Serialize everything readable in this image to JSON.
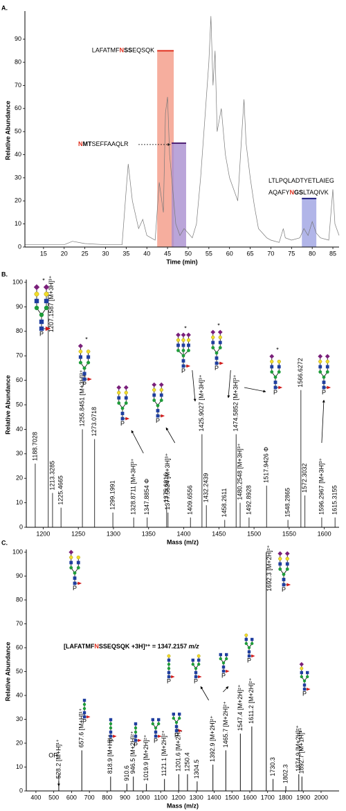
{
  "chart_data": [
    {
      "panel": "A.",
      "type": "line",
      "xlabel": "Time (min)",
      "ylabel": "Relative Abundance",
      "xlim": [
        10.5,
        86.5
      ],
      "ylim": [
        0,
        101
      ],
      "xticks": [
        15,
        20,
        25,
        30,
        35,
        40,
        45,
        50,
        55,
        60,
        65,
        70,
        75,
        80,
        85
      ],
      "yticks": [
        0,
        10,
        20,
        30,
        40,
        50,
        60,
        70,
        80,
        90
      ],
      "color": "#777777",
      "x": [
        10.5,
        20,
        22,
        25,
        30,
        34,
        35,
        35.5,
        36.5,
        38,
        39,
        40,
        41,
        42,
        43,
        44,
        44.5,
        45,
        45.5,
        46,
        46.5,
        47,
        48,
        49,
        50,
        51,
        52,
        53,
        54,
        55,
        55.5,
        56,
        56.5,
        57,
        58,
        59,
        60,
        61,
        62,
        63,
        63.5,
        64,
        65,
        66,
        67,
        68,
        69,
        70,
        72,
        73,
        73.5,
        75,
        77,
        78,
        79,
        80,
        81,
        82,
        84,
        85,
        85.5,
        86.5
      ],
      "values": [
        1,
        1,
        2.5,
        1.5,
        1,
        1,
        25,
        36,
        20,
        8,
        12,
        5,
        4,
        3,
        28,
        15,
        58,
        65,
        40,
        30,
        20,
        10,
        5,
        8,
        6,
        4,
        10,
        30,
        55,
        80,
        100,
        70,
        85,
        50,
        60,
        40,
        30,
        25,
        20,
        50,
        64,
        45,
        30,
        18,
        8,
        6,
        4,
        3,
        2,
        8,
        4,
        3,
        4,
        8,
        5,
        11,
        6,
        4,
        3,
        25,
        10,
        5
      ],
      "regions": [
        {
          "x0": 42.5,
          "x1": 46.5,
          "y": 85,
          "fill": "#f49a86",
          "color": "#e0301e",
          "lines": [
            [
              {
                "text": "LAFATMF"
              },
              {
                "text": "N",
                "color": "#e0301e",
                "bold": true
              },
              {
                "text": "SS",
                "bold": true
              },
              {
                "text": "EQSQK"
              }
            ]
          ]
        },
        {
          "x0": 46,
          "x1": 49.5,
          "y": 45,
          "fill": "#a98fd0",
          "color": "#4a1a70",
          "lines": [
            [
              {
                "text": "N",
                "color": "#e0301e",
                "bold": true
              },
              {
                "text": "MT",
                "bold": true
              },
              {
                "text": "SEFFAAQLR"
              }
            ]
          ]
        },
        {
          "x0": 77.5,
          "x1": 81,
          "y": 21,
          "fill": "#9da2e2",
          "color": "#1e1e80",
          "lines": [
            [
              {
                "text": "LTLPQLADTYETLAIEG"
              }
            ],
            [
              {
                "text": "AQAFY"
              },
              {
                "text": "N",
                "color": "#e0301e",
                "bold": true
              },
              {
                "text": "GS",
                "bold": true
              },
              {
                "text": "LTAQIVK"
              }
            ]
          ]
        }
      ]
    },
    {
      "panel": "B.",
      "type": "bar",
      "xlabel": "Mass (m/z)",
      "ylabel": "Relative Abundance",
      "xlim": [
        1176,
        1621
      ],
      "ylim": [
        0,
        100
      ],
      "xticks": [
        1200,
        1250,
        1300,
        1350,
        1400,
        1450,
        1500,
        1550,
        1600
      ],
      "yticks": [
        0,
        10,
        20,
        30,
        40,
        50,
        60,
        70,
        80,
        90,
        100
      ],
      "color": "#555555",
      "x": [
        1188.7028,
        1207.1587,
        1213.3285,
        1225.4665,
        1255.8451,
        1273.0718,
        1299.1991,
        1328.8711,
        1347.8854,
        1375.6016,
        1377.5524,
        1409.6556,
        1425.9027,
        1432.2439,
        1458.2611,
        1474.5852,
        1480.2548,
        1492.8928,
        1517.9426,
        1548.2865,
        1566.6272,
        1572.3032,
        1596.2967,
        1615.3155
      ],
      "values": [
        26,
        96,
        14,
        8,
        40,
        36,
        6,
        4,
        4,
        9,
        6,
        4,
        38,
        9,
        3,
        38,
        10,
        4,
        17,
        3,
        56,
        13,
        4,
        4
      ],
      "peak_labels": [
        "1188.7028",
        "1207.1587 [M+3H]³⁺",
        "1213.3285",
        "1225.4665",
        "1255.8451 [M+3H]³⁺",
        "1273.0718",
        "1299.1991",
        "1328.8711 [M+3H]³⁺",
        "1347.8854 Φ",
        "1375.6016",
        "1377.5524 [M+3H]³⁺",
        "1409.6556",
        "1425.9027 [M+3H]³⁺",
        "1432.2439",
        "1458.2611",
        "1474.5852 [M+3H]³⁺",
        "1480.2548 [M+3H]³⁺",
        "1492.8928",
        "1517.9426 Φ",
        "1548.2865",
        "1566.6272",
        "1572.3032",
        "1596.2967 [M+3H]³⁺",
        "1615.3155"
      ],
      "asterisk": "*",
      "phosphate": "P"
    },
    {
      "panel": "C.",
      "type": "bar",
      "xlabel": "Mass (m/z)",
      "ylabel": "Relative Abundance",
      "xlim": [
        346,
        2101
      ],
      "ylim": [
        0,
        100
      ],
      "xticks": [
        400,
        500,
        600,
        700,
        800,
        900,
        1000,
        1100,
        1200,
        1300,
        1400,
        1500,
        1600,
        1700,
        1800,
        1900,
        2000
      ],
      "yticks": [
        0,
        10,
        20,
        30,
        40,
        50,
        60,
        70,
        80,
        90,
        100
      ],
      "color": "#333333",
      "x": [
        528.2,
        657.6,
        818.9,
        910.6,
        946.5,
        1019.9,
        1121.1,
        1201.6,
        1250.4,
        1304.5,
        1392.9,
        1465.7,
        1547.4,
        1611.2,
        1692.3,
        1730.3,
        1802.3,
        1874.9,
        1892.7
      ],
      "values": [
        4,
        17,
        6,
        3,
        6,
        3,
        5,
        7,
        7,
        4,
        11,
        17,
        24,
        27,
        100,
        5,
        2,
        7,
        6
      ],
      "peak_labels": [
        "528.2 [M+H]¹⁺",
        "657.6 [M+H]¹⁺",
        "818.9 [M+H]¹⁺",
        "910.6",
        "946.5 [M+2H]²⁺",
        "1019.9 [M+2H]²⁺",
        "1121.1 [M+2H]²⁺",
        "1201.6 [M+2H]²⁺",
        "1250.4",
        "1304.5",
        "1392.9 [M+2H]²⁺",
        "1465.7 [M+2H]²⁺",
        "1547.4 [M+2H]²⁺",
        "1611.2 [M+2H]²⁺",
        "1692.3 [M+2H]²⁺",
        "1730.3",
        "1802.3",
        "1874.9 [M+2H]²⁺",
        "1892.7 [M+1H]¹⁺"
      ],
      "title_parts": [
        {
          "text": "[LAFATMF"
        },
        {
          "text": "N",
          "color": "#e0301e"
        },
        {
          "text": "SSEQSQK +3H]³⁺ = 1347.2157 "
        },
        {
          "text": "m/z",
          "italic": true
        }
      ],
      "or_label": "OR",
      "phosphate": "P"
    }
  ]
}
